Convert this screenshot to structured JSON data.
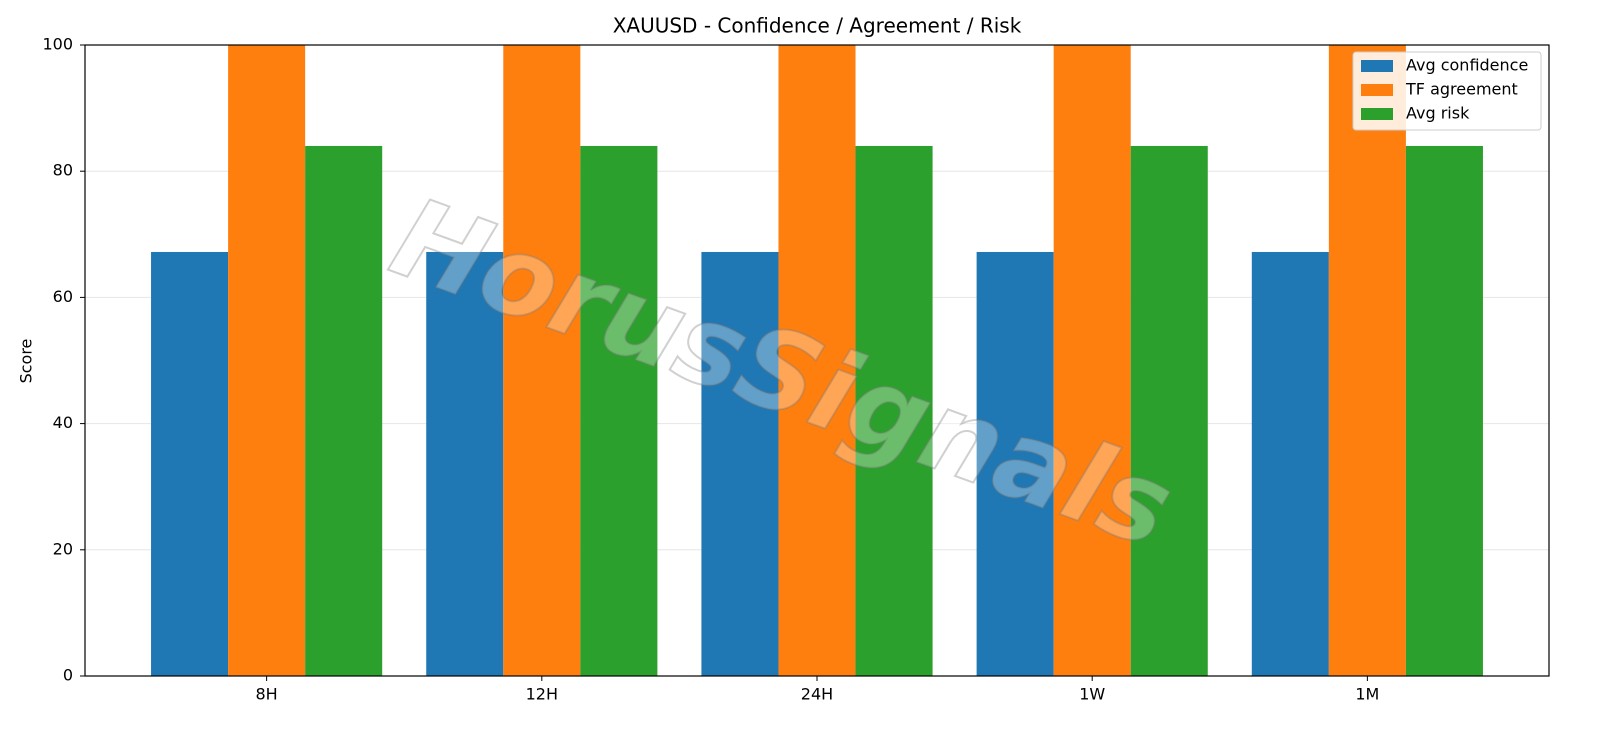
{
  "chart_data": {
    "type": "bar",
    "title": "XAUUSD - Confidence / Agreement / Risk",
    "y_label": "Score",
    "categories": [
      "8H",
      "12H",
      "24H",
      "1W",
      "1M"
    ],
    "series": [
      {
        "name": "Avg confidence",
        "color": "#1f77b4",
        "values": [
          67.2,
          67.2,
          67.2,
          67.2,
          67.2
        ]
      },
      {
        "name": "TF agreement",
        "color": "#ff7f0e",
        "values": [
          100,
          100,
          100,
          100,
          100
        ]
      },
      {
        "name": "Avg risk",
        "color": "#2ca02c",
        "values": [
          84,
          84,
          84,
          84,
          84
        ]
      }
    ],
    "ylim": [
      0,
      100
    ],
    "yticks": [
      0,
      20,
      40,
      60,
      80,
      100
    ],
    "grid": true,
    "legend": "upper right",
    "watermark": "HorusSignals"
  }
}
